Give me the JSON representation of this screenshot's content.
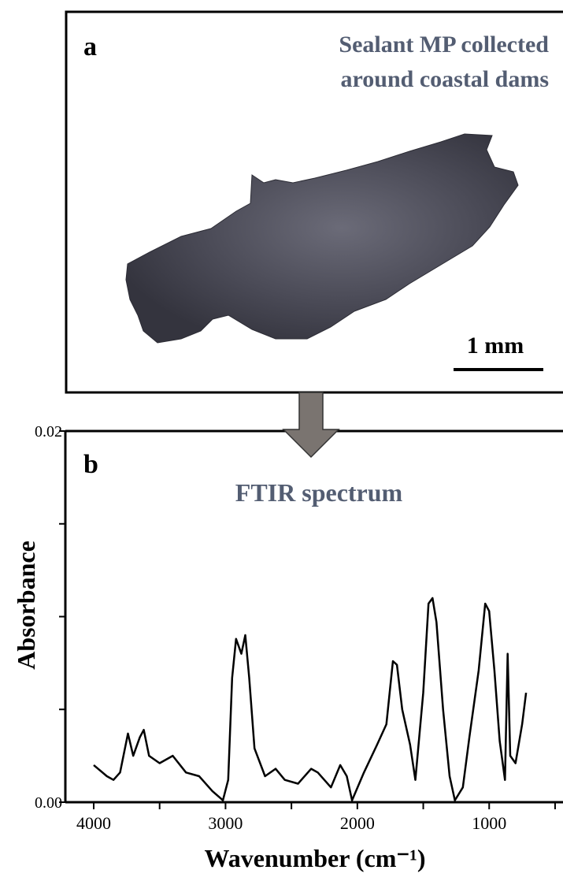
{
  "panel_a": {
    "label": "a",
    "caption_lines": [
      "Sealant MP collected",
      "around coastal dams"
    ],
    "scale_bar": "1 mm"
  },
  "chart_data": {
    "type": "line",
    "panel_label": "b",
    "title": "FTIR spectrum",
    "x_label": "Wavenumber (cm⁻¹)",
    "y_label": "Absorbance",
    "color": "#000000",
    "x": [
      4000,
      3900,
      3850,
      3800,
      3740,
      3700,
      3650,
      3620,
      3580,
      3500,
      3400,
      3300,
      3200,
      3100,
      3020,
      2980,
      2950,
      2920,
      2880,
      2850,
      2820,
      2780,
      2700,
      2620,
      2550,
      2450,
      2350,
      2300,
      2200,
      2130,
      2080,
      2040,
      1950,
      1850,
      1780,
      1730,
      1700,
      1660,
      1600,
      1560,
      1500,
      1460,
      1430,
      1400,
      1350,
      1300,
      1260,
      1200,
      1150,
      1080,
      1030,
      1000,
      960,
      920,
      880,
      860,
      840,
      800,
      750,
      720
    ],
    "values": [
      0.002,
      0.0014,
      0.0012,
      0.0016,
      0.0037,
      0.0025,
      0.0035,
      0.0039,
      0.0025,
      0.0021,
      0.0025,
      0.0016,
      0.0014,
      0.0006,
      0.0001,
      0.0012,
      0.0067,
      0.0088,
      0.008,
      0.009,
      0.0067,
      0.0029,
      0.0014,
      0.0018,
      0.0012,
      0.001,
      0.0018,
      0.0016,
      0.0008,
      0.002,
      0.0014,
      0.0001,
      0.0016,
      0.0031,
      0.0042,
      0.0076,
      0.0074,
      0.005,
      0.0031,
      0.0012,
      0.0059,
      0.0107,
      0.011,
      0.0097,
      0.005,
      0.0014,
      0.0001,
      0.0008,
      0.0035,
      0.0071,
      0.0107,
      0.0103,
      0.0071,
      0.0033,
      0.0012,
      0.008,
      0.0025,
      0.0021,
      0.0042,
      0.0059
    ],
    "xlim": [
      4215,
      440
    ],
    "xticks": [
      4000,
      3000,
      2000,
      1000
    ],
    "minor_xticks": [
      3500,
      2500,
      1500,
      500
    ],
    "ylim": [
      0,
      0.02
    ],
    "yticks": [
      {
        "value": 0,
        "label": "0.00"
      },
      {
        "value": 0.02,
        "label": "0.02"
      }
    ],
    "minor_yticks": [
      0.005,
      0.01,
      0.015
    ]
  }
}
